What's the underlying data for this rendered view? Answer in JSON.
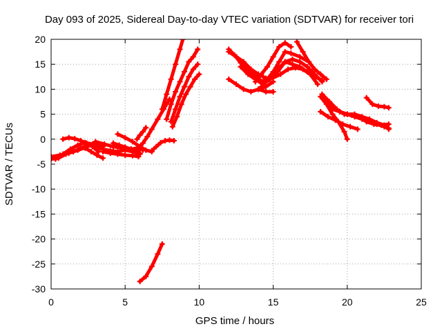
{
  "chart_data": {
    "type": "line",
    "title": "Day 093 of 2025, Sidereal Day-to-day VTEC variation (SDTVAR) for receiver tori",
    "xlabel": "GPS time / hours",
    "ylabel": "SDTVAR / TECUs",
    "xlim": [
      0,
      25
    ],
    "ylim": [
      -30,
      20
    ],
    "xticks": [
      0,
      5,
      10,
      15,
      20,
      25
    ],
    "yticks": [
      -30,
      -25,
      -20,
      -15,
      -10,
      -5,
      0,
      5,
      10,
      15,
      20
    ],
    "grid": true,
    "legend": "none",
    "color": "#ff0000",
    "series": [
      {
        "x": [
          0.0,
          0.5,
          1.0,
          1.5,
          2.0,
          2.5,
          3.0
        ],
        "y": [
          -4.0,
          -3.8,
          -3.0,
          -2.5,
          -1.8,
          -1.2,
          -0.8
        ]
      },
      {
        "x": [
          0.0,
          0.6,
          1.2,
          1.8,
          2.4,
          3.0,
          3.5
        ],
        "y": [
          -3.5,
          -3.2,
          -2.8,
          -2.2,
          -1.5,
          -1.0,
          -1.5
        ]
      },
      {
        "x": [
          0.3,
          0.8,
          1.3,
          1.8,
          2.3,
          2.8,
          3.3
        ],
        "y": [
          -4.0,
          -3.0,
          -2.0,
          -1.2,
          -0.7,
          -1.0,
          -1.8
        ]
      },
      {
        "x": [
          0.8,
          1.2,
          1.6,
          2.0,
          2.4,
          2.8,
          3.2
        ],
        "y": [
          0.0,
          0.3,
          0.1,
          -0.3,
          -0.8,
          -1.5,
          -2.5
        ]
      },
      {
        "x": [
          1.5,
          1.9,
          2.3,
          2.7,
          3.1,
          3.5
        ],
        "y": [
          -2.5,
          -2.0,
          -1.8,
          -2.5,
          -3.2,
          -3.8
        ]
      },
      {
        "x": [
          3.0,
          3.5,
          4.0,
          4.5,
          5.0,
          5.5,
          6.0
        ],
        "y": [
          -1.5,
          -2.0,
          -2.3,
          -2.5,
          -2.2,
          -2.5,
          -3.0
        ]
      },
      {
        "x": [
          3.0,
          3.6,
          4.2,
          4.8,
          5.4,
          5.8,
          6.2
        ],
        "y": [
          -0.5,
          -1.0,
          -1.5,
          -1.8,
          -2.0,
          -1.8,
          -2.2
        ]
      },
      {
        "x": [
          3.5,
          4.0,
          4.5,
          5.0,
          5.5,
          5.9
        ],
        "y": [
          -2.5,
          -2.8,
          -3.0,
          -3.2,
          -3.3,
          -3.5
        ]
      },
      {
        "x": [
          4.2,
          4.6,
          5.0,
          5.4,
          5.8,
          6.0
        ],
        "y": [
          -0.8,
          -1.2,
          -1.6,
          -2.0,
          -2.4,
          -2.8
        ]
      },
      {
        "x": [
          4.5,
          5.0,
          5.5,
          6.0,
          6.4,
          6.8
        ],
        "y": [
          1.0,
          0.3,
          -0.5,
          -1.5,
          -2.2,
          -2.5
        ]
      },
      {
        "x": [
          5.5,
          5.9,
          6.2,
          6.5,
          6.8,
          7.2,
          7.6,
          8.0
        ],
        "y": [
          -2.5,
          -1.8,
          -0.8,
          0.5,
          2.0,
          4.0,
          6.0,
          8.0
        ]
      },
      {
        "x": [
          5.8,
          6.0,
          6.2,
          6.4
        ],
        "y": [
          0.0,
          0.8,
          1.5,
          2.3
        ]
      },
      {
        "x": [
          6.8,
          7.1,
          7.4,
          7.7,
          8.0,
          8.3
        ],
        "y": [
          -2.3,
          -1.5,
          -0.7,
          -0.3,
          -0.2,
          -0.3
        ]
      },
      {
        "x": [
          6.0,
          6.4,
          6.8,
          7.2,
          7.5
        ],
        "y": [
          -28.5,
          -27.5,
          -25.5,
          -23.0,
          -21.0
        ]
      },
      {
        "x": [
          7.5,
          7.8,
          8.1,
          8.4,
          8.7,
          8.9
        ],
        "y": [
          6.0,
          9.0,
          12.0,
          15.0,
          18.0,
          20.0
        ]
      },
      {
        "x": [
          7.8,
          8.1,
          8.4,
          8.7,
          9.0,
          9.3,
          9.6,
          9.9
        ],
        "y": [
          4.0,
          7.0,
          9.5,
          11.5,
          13.5,
          15.5,
          16.5,
          18.0
        ]
      },
      {
        "x": [
          8.1,
          8.4,
          8.7,
          9.0,
          9.3,
          9.6,
          9.9
        ],
        "y": [
          3.5,
          6.0,
          8.5,
          10.5,
          12.5,
          14.0,
          15.0
        ]
      },
      {
        "x": [
          8.2,
          8.5,
          8.8,
          9.1,
          9.4,
          9.7,
          10.0
        ],
        "y": [
          2.5,
          4.5,
          7.0,
          9.0,
          10.5,
          12.0,
          13.0
        ]
      },
      {
        "x": [
          12.0,
          12.4,
          12.8,
          13.2,
          13.6,
          14.0
        ],
        "y": [
          18.0,
          16.8,
          15.3,
          14.0,
          13.0,
          12.5
        ]
      },
      {
        "x": [
          12.0,
          12.5,
          13.0,
          13.5,
          14.0,
          14.5,
          15.0,
          15.5,
          16.0,
          16.5,
          17.0,
          17.5,
          18.0
        ],
        "y": [
          17.5,
          16.5,
          15.5,
          14.0,
          13.0,
          12.2,
          12.3,
          13.0,
          14.0,
          14.3,
          14.0,
          13.0,
          11.0
        ]
      },
      {
        "x": [
          12.0,
          12.5,
          13.0,
          13.5,
          14.0,
          14.5,
          15.0
        ],
        "y": [
          12.0,
          11.0,
          10.0,
          9.5,
          10.0,
          10.5,
          11.5
        ]
      },
      {
        "x": [
          12.8,
          13.3,
          13.8,
          14.3,
          14.8,
          15.3,
          15.8,
          16.3,
          16.8,
          17.3,
          17.8,
          18.3
        ],
        "y": [
          14.5,
          13.0,
          12.0,
          11.0,
          12.0,
          13.5,
          15.5,
          16.0,
          15.5,
          14.5,
          13.0,
          11.5
        ]
      },
      {
        "x": [
          13.3,
          13.8,
          14.3,
          14.8,
          15.3,
          15.8,
          16.3,
          16.8,
          17.3,
          17.8,
          18.3
        ],
        "y": [
          13.5,
          12.5,
          11.5,
          12.5,
          14.0,
          15.5,
          15.0,
          14.5,
          13.5,
          12.5,
          11.8
        ]
      },
      {
        "x": [
          13.8,
          14.2,
          14.6,
          15.0,
          15.4,
          15.8,
          16.2
        ],
        "y": [
          11.5,
          13.0,
          14.5,
          16.5,
          18.5,
          19.3,
          18.5
        ]
      },
      {
        "x": [
          14.2,
          14.6,
          15.0,
          15.4,
          15.8,
          16.2,
          16.8,
          17.4
        ],
        "y": [
          10.5,
          12.0,
          13.5,
          15.5,
          17.5,
          17.2,
          16.5,
          15.5
        ]
      },
      {
        "x": [
          14.0,
          14.5,
          15.0
        ],
        "y": [
          10.0,
          9.5,
          9.5
        ]
      },
      {
        "x": [
          16.6,
          17.0,
          17.4,
          17.8,
          18.2,
          18.6
        ],
        "y": [
          19.5,
          17.5,
          15.5,
          14.0,
          13.0,
          12.0
        ]
      },
      {
        "x": [
          18.2,
          18.6,
          19.0,
          19.4,
          19.8,
          20.0
        ],
        "y": [
          8.5,
          7.0,
          5.0,
          3.5,
          1.5,
          0.0
        ]
      },
      {
        "x": [
          18.3,
          18.8,
          19.3,
          19.8,
          20.3,
          20.8,
          21.3,
          21.8,
          22.3,
          22.8
        ],
        "y": [
          9.0,
          7.5,
          6.0,
          5.0,
          4.8,
          4.5,
          3.5,
          3.0,
          2.8,
          3.0
        ]
      },
      {
        "x": [
          18.5,
          19.0,
          19.5,
          20.0,
          20.5,
          21.0,
          21.5,
          22.0,
          22.5,
          22.8
        ],
        "y": [
          7.5,
          6.0,
          5.5,
          5.0,
          5.0,
          4.5,
          4.0,
          3.3,
          2.8,
          2.0
        ]
      },
      {
        "x": [
          18.2,
          18.7,
          19.2,
          19.7,
          20.2,
          20.7
        ],
        "y": [
          5.5,
          4.5,
          3.8,
          3.0,
          2.5,
          2.0
        ]
      },
      {
        "x": [
          19.5,
          20.0,
          20.5,
          21.0,
          21.5,
          22.0,
          22.5,
          22.8
        ],
        "y": [
          5.5,
          5.0,
          4.5,
          4.0,
          3.5,
          3.0,
          2.5,
          2.2
        ]
      },
      {
        "x": [
          21.3,
          21.7,
          22.1,
          22.5,
          22.8
        ],
        "y": [
          8.3,
          7.0,
          6.6,
          6.5,
          6.3
        ]
      }
    ]
  }
}
